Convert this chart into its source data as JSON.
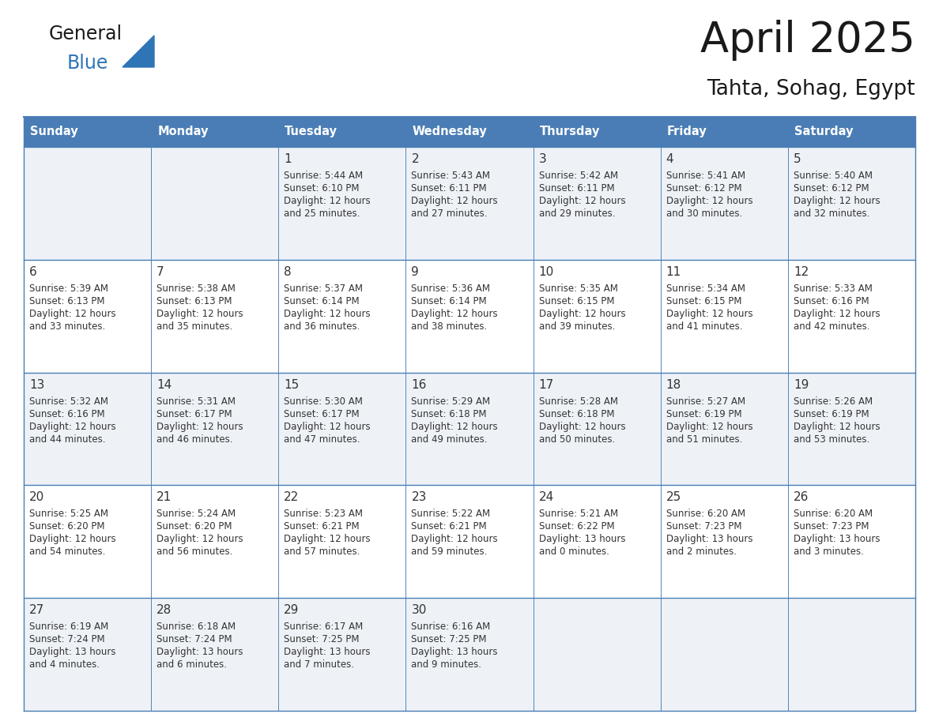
{
  "title": "April 2025",
  "subtitle": "Tahta, Sohag, Egypt",
  "days_of_week": [
    "Sunday",
    "Monday",
    "Tuesday",
    "Wednesday",
    "Thursday",
    "Friday",
    "Saturday"
  ],
  "header_bg": "#4a7db5",
  "header_text": "#ffffff",
  "row_bg_odd": "#eef2f7",
  "row_bg_even": "#ffffff",
  "cell_border_color": "#4a7db5",
  "text_color": "#333333",
  "title_color": "#1a1a1a",
  "logo_general_color": "#1a1a1a",
  "logo_blue_color": "#2e75b6",
  "logo_triangle_color": "#2e75b6",
  "calendar_data": [
    [
      {
        "day": "",
        "sunrise": "",
        "sunset": "",
        "daylight": ""
      },
      {
        "day": "",
        "sunrise": "",
        "sunset": "",
        "daylight": ""
      },
      {
        "day": "1",
        "sunrise": "5:44 AM",
        "sunset": "6:10 PM",
        "daylight": "12 hours and 25 minutes."
      },
      {
        "day": "2",
        "sunrise": "5:43 AM",
        "sunset": "6:11 PM",
        "daylight": "12 hours and 27 minutes."
      },
      {
        "day": "3",
        "sunrise": "5:42 AM",
        "sunset": "6:11 PM",
        "daylight": "12 hours and 29 minutes."
      },
      {
        "day": "4",
        "sunrise": "5:41 AM",
        "sunset": "6:12 PM",
        "daylight": "12 hours and 30 minutes."
      },
      {
        "day": "5",
        "sunrise": "5:40 AM",
        "sunset": "6:12 PM",
        "daylight": "12 hours and 32 minutes."
      }
    ],
    [
      {
        "day": "6",
        "sunrise": "5:39 AM",
        "sunset": "6:13 PM",
        "daylight": "12 hours and 33 minutes."
      },
      {
        "day": "7",
        "sunrise": "5:38 AM",
        "sunset": "6:13 PM",
        "daylight": "12 hours and 35 minutes."
      },
      {
        "day": "8",
        "sunrise": "5:37 AM",
        "sunset": "6:14 PM",
        "daylight": "12 hours and 36 minutes."
      },
      {
        "day": "9",
        "sunrise": "5:36 AM",
        "sunset": "6:14 PM",
        "daylight": "12 hours and 38 minutes."
      },
      {
        "day": "10",
        "sunrise": "5:35 AM",
        "sunset": "6:15 PM",
        "daylight": "12 hours and 39 minutes."
      },
      {
        "day": "11",
        "sunrise": "5:34 AM",
        "sunset": "6:15 PM",
        "daylight": "12 hours and 41 minutes."
      },
      {
        "day": "12",
        "sunrise": "5:33 AM",
        "sunset": "6:16 PM",
        "daylight": "12 hours and 42 minutes."
      }
    ],
    [
      {
        "day": "13",
        "sunrise": "5:32 AM",
        "sunset": "6:16 PM",
        "daylight": "12 hours and 44 minutes."
      },
      {
        "day": "14",
        "sunrise": "5:31 AM",
        "sunset": "6:17 PM",
        "daylight": "12 hours and 46 minutes."
      },
      {
        "day": "15",
        "sunrise": "5:30 AM",
        "sunset": "6:17 PM",
        "daylight": "12 hours and 47 minutes."
      },
      {
        "day": "16",
        "sunrise": "5:29 AM",
        "sunset": "6:18 PM",
        "daylight": "12 hours and 49 minutes."
      },
      {
        "day": "17",
        "sunrise": "5:28 AM",
        "sunset": "6:18 PM",
        "daylight": "12 hours and 50 minutes."
      },
      {
        "day": "18",
        "sunrise": "5:27 AM",
        "sunset": "6:19 PM",
        "daylight": "12 hours and 51 minutes."
      },
      {
        "day": "19",
        "sunrise": "5:26 AM",
        "sunset": "6:19 PM",
        "daylight": "12 hours and 53 minutes."
      }
    ],
    [
      {
        "day": "20",
        "sunrise": "5:25 AM",
        "sunset": "6:20 PM",
        "daylight": "12 hours and 54 minutes."
      },
      {
        "day": "21",
        "sunrise": "5:24 AM",
        "sunset": "6:20 PM",
        "daylight": "12 hours and 56 minutes."
      },
      {
        "day": "22",
        "sunrise": "5:23 AM",
        "sunset": "6:21 PM",
        "daylight": "12 hours and 57 minutes."
      },
      {
        "day": "23",
        "sunrise": "5:22 AM",
        "sunset": "6:21 PM",
        "daylight": "12 hours and 59 minutes."
      },
      {
        "day": "24",
        "sunrise": "5:21 AM",
        "sunset": "6:22 PM",
        "daylight": "13 hours and 0 minutes."
      },
      {
        "day": "25",
        "sunrise": "6:20 AM",
        "sunset": "7:23 PM",
        "daylight": "13 hours and 2 minutes."
      },
      {
        "day": "26",
        "sunrise": "6:20 AM",
        "sunset": "7:23 PM",
        "daylight": "13 hours and 3 minutes."
      }
    ],
    [
      {
        "day": "27",
        "sunrise": "6:19 AM",
        "sunset": "7:24 PM",
        "daylight": "13 hours and 4 minutes."
      },
      {
        "day": "28",
        "sunrise": "6:18 AM",
        "sunset": "7:24 PM",
        "daylight": "13 hours and 6 minutes."
      },
      {
        "day": "29",
        "sunrise": "6:17 AM",
        "sunset": "7:25 PM",
        "daylight": "13 hours and 7 minutes."
      },
      {
        "day": "30",
        "sunrise": "6:16 AM",
        "sunset": "7:25 PM",
        "daylight": "13 hours and 9 minutes."
      },
      {
        "day": "",
        "sunrise": "",
        "sunset": "",
        "daylight": ""
      },
      {
        "day": "",
        "sunrise": "",
        "sunset": "",
        "daylight": ""
      },
      {
        "day": "",
        "sunrise": "",
        "sunset": "",
        "daylight": ""
      }
    ]
  ]
}
